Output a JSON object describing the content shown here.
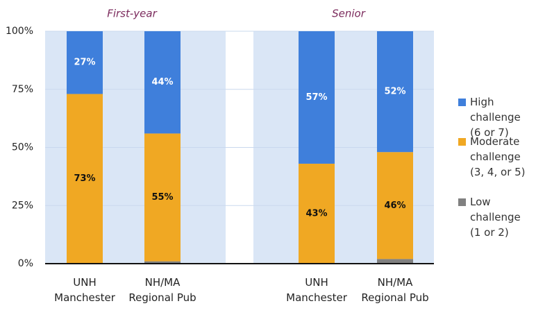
{
  "chart_data": {
    "type": "stacked_bar",
    "groups": [
      "First-year",
      "Senior"
    ],
    "categories": [
      "UNH Manchester",
      "NH/MA Regional Pub",
      "UNH Manchester",
      "NH/MA Regional Pub"
    ],
    "series": [
      {
        "name": "Low challenge (1 or 2)",
        "color": "#808080",
        "values": [
          0,
          1,
          0,
          2
        ]
      },
      {
        "name": "Moderate challenge (3, 4, or 5)",
        "color": "#f0a823",
        "values": [
          73,
          55,
          43,
          46
        ],
        "value_labels": [
          "73%",
          "55%",
          "43%",
          "46%"
        ]
      },
      {
        "name": "High challenge (6 or 7)",
        "color": "#3f7fdb",
        "values": [
          27,
          44,
          57,
          52
        ],
        "value_labels": [
          "27%",
          "44%",
          "57%",
          "52%"
        ]
      }
    ],
    "ylim": [
      0,
      100
    ],
    "yticks": [
      {
        "value": 0,
        "label": "0%"
      },
      {
        "value": 25,
        "label": "25%"
      },
      {
        "value": 50,
        "label": "50%"
      },
      {
        "value": 75,
        "label": "75%"
      },
      {
        "value": 100,
        "label": "100%"
      }
    ],
    "grid": true,
    "legend": "right"
  }
}
